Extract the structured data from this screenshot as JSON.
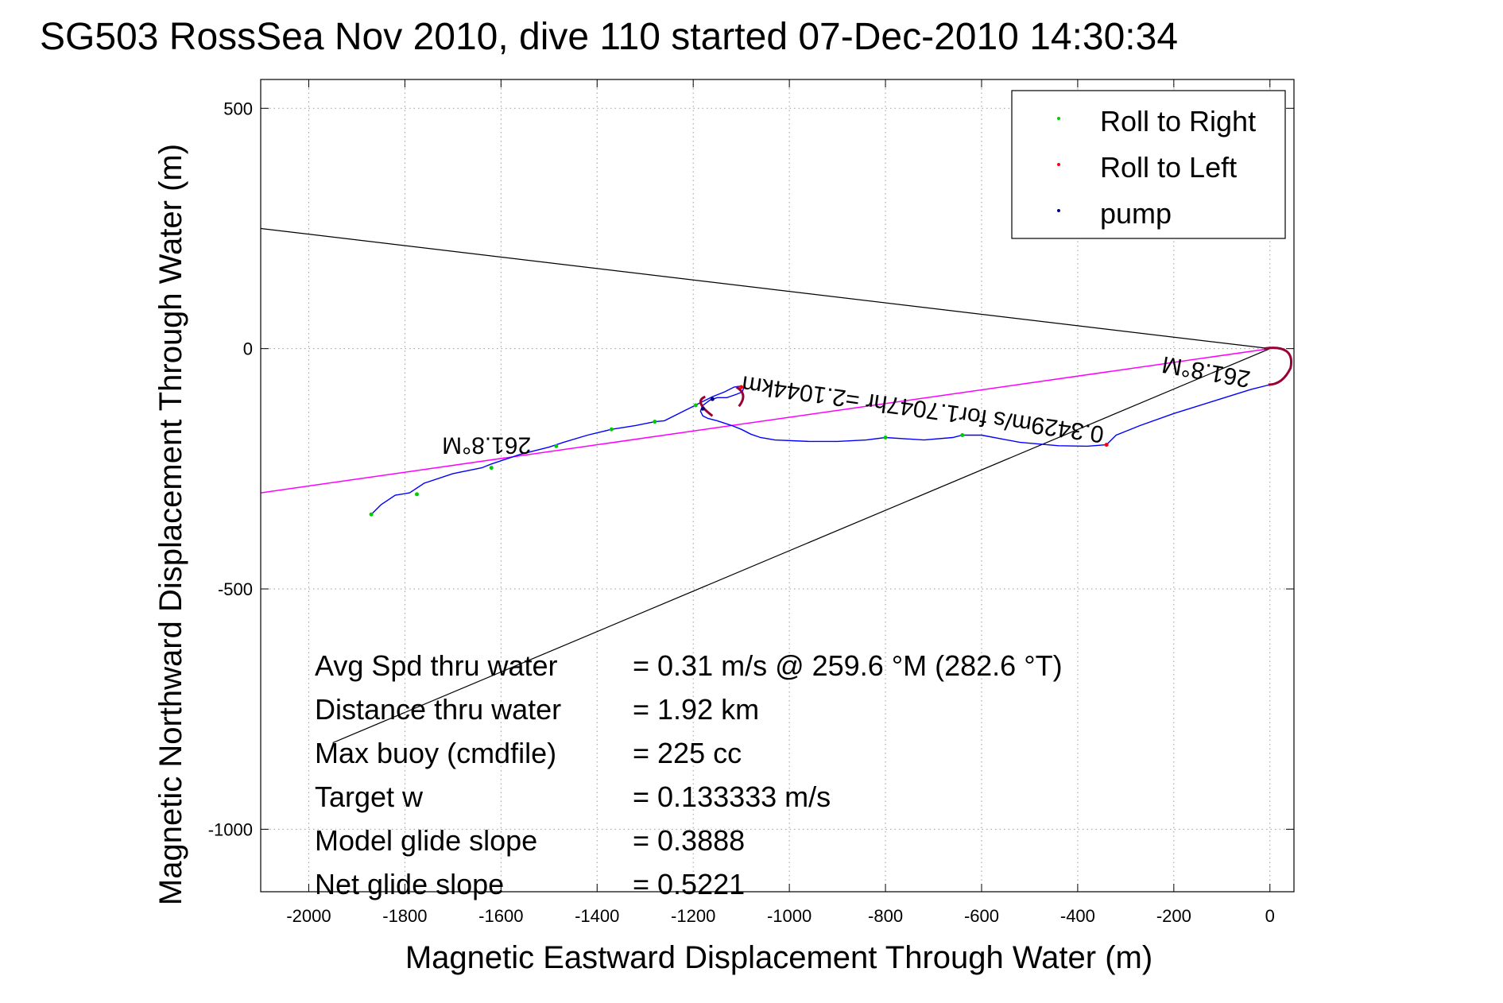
{
  "chart_data": {
    "type": "line",
    "title": "SG503 RossSea Nov 2010, dive 110 started 07-Dec-2010 14:30:34",
    "xlabel": "Magnetic Eastward Displacement Through Water (m)",
    "ylabel": "Magnetic Northward Displacement Through Water (m)",
    "xlim": [
      -2100,
      50
    ],
    "ylim": [
      -1130,
      560
    ],
    "x_ticks": [
      -2000,
      -1800,
      -1600,
      -1400,
      -1200,
      -1000,
      -800,
      -600,
      -400,
      -200,
      0
    ],
    "y_ticks": [
      -1000,
      -500,
      0,
      500
    ],
    "grid": true,
    "legend_position": "top-right",
    "legend": [
      {
        "name": "Roll to Right",
        "color": "#00cc00"
      },
      {
        "name": "Roll to Left",
        "color": "#ff0000"
      },
      {
        "name": "pump",
        "color": "#000080"
      }
    ],
    "colors": {
      "track": "#0000ff",
      "heading_line": "#ff00ff",
      "cone_lines": "#000000",
      "loop": "#990033"
    },
    "series": [
      {
        "x": [
          0,
          -40,
          -120,
          -200,
          -270,
          -320,
          -340,
          -380,
          -440,
          -520,
          -600,
          -640,
          -660,
          -720,
          -800,
          -840,
          -900,
          -960,
          -1030,
          -1060,
          -1080,
          -1100,
          -1120,
          -1150,
          -1170,
          -1180,
          -1185,
          -1180,
          -1165,
          -1150,
          -1130,
          -1110,
          -1098,
          -1095,
          -1102,
          -1115,
          -1135,
          -1160,
          -1200,
          -1260,
          -1280,
          -1320,
          -1370,
          -1420,
          -1470,
          -1500,
          -1560,
          -1620,
          -1640,
          -1700,
          -1760,
          -1790,
          -1820,
          -1850,
          -1870
        ],
        "y": [
          -75,
          -85,
          -110,
          -135,
          -160,
          -180,
          -200,
          -203,
          -202,
          -195,
          -180,
          -180,
          -185,
          -190,
          -185,
          -190,
          -193,
          -193,
          -190,
          -185,
          -178,
          -168,
          -160,
          -150,
          -145,
          -140,
          -130,
          -118,
          -107,
          -102,
          -102,
          -95,
          -90,
          -82,
          -78,
          -80,
          -90,
          -100,
          -120,
          -150,
          -152,
          -160,
          -168,
          -180,
          -195,
          -205,
          -220,
          -240,
          -248,
          -260,
          -280,
          -300,
          -305,
          -325,
          -345
        ]
      }
    ],
    "markers": {
      "roll_to_right": {
        "x": [
          -1870,
          -1775,
          -1620,
          -1485,
          -1370,
          -1280,
          -1195,
          -800,
          -640
        ],
        "y": [
          -345,
          -303,
          -248,
          -203,
          -168,
          -152,
          -118,
          -185,
          -180
        ]
      },
      "roll_to_left": {
        "x": [
          -1100,
          -340
        ],
        "y": [
          -80,
          -200
        ]
      },
      "pump": {
        "x": [
          -1180,
          -1160
        ],
        "y": [
          -125,
          -105
        ]
      }
    },
    "heading_line": {
      "x": [
        0,
        -2100
      ],
      "y": [
        0,
        -300
      ]
    },
    "cone_lines": [
      {
        "x": [
          0,
          -2100
        ],
        "y": [
          0,
          250
        ]
      },
      {
        "x": [
          0,
          -1950
        ],
        "y": [
          0,
          -820
        ]
      }
    ],
    "annotations": [
      {
        "text": "261.8°M",
        "x": -1630,
        "y": -185,
        "rotate": 180
      },
      {
        "text": "261.8°M",
        "x": -130,
        "y": -32,
        "rotate": 190
      },
      {
        "text": "0.3429m/s for1.7047hr =2.1044km",
        "x": -720,
        "y": -110,
        "rotate": 188
      }
    ],
    "stats": [
      {
        "label": "Avg Spd thru water",
        "value": "=  0.31 m/s @ 259.6 °M (282.6 °T)"
      },
      {
        "label": "Distance thru water",
        "value": "=  1.92 km"
      },
      {
        "label": "Max buoy (cmdfile)",
        "value": "= 225 cc"
      },
      {
        "label": "Target w",
        "value": "= 0.133333 m/s"
      },
      {
        "label": "Model glide slope",
        "value": "= 0.3888"
      },
      {
        "label": "Net glide slope",
        "value": "= 0.5221"
      }
    ]
  }
}
